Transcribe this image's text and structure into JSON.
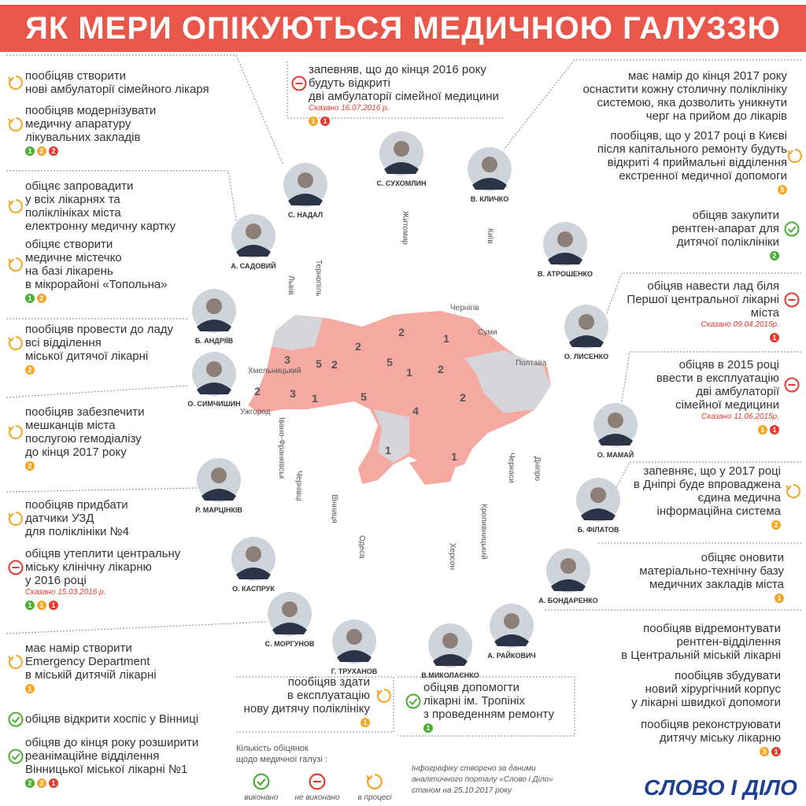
{
  "title": "ЯК МЕРИ ОПІКУЮТЬСЯ МЕДИЧНОЮ ГАЛУЗЗЮ",
  "promises": [
    {
      "status": "progress",
      "lines": [
        "пообіцяв створити",
        "нові амбулаторії сімейного лікаря"
      ]
    },
    {
      "status": "progress",
      "lines": [
        "пообіцяв модернізувати",
        "медичну апаратуру",
        "лікувальних закладів"
      ],
      "badges": [
        {
          "status": "done",
          "count": 1
        },
        {
          "status": "progress",
          "count": 2
        },
        {
          "status": "fail",
          "count": 2
        }
      ]
    },
    {
      "status": "progress",
      "lines": [
        "обіцяє запровадити",
        "у всіх лікарнях та",
        "поліклініках міста",
        "електронну медичну картку"
      ]
    },
    {
      "status": "progress",
      "lines": [
        "обіцяє створити",
        "медичне містечко",
        "на базі лікарень",
        "в мікрорайоні «Топольна»"
      ],
      "badges": [
        {
          "status": "done",
          "count": 1
        },
        {
          "status": "progress",
          "count": 2
        }
      ]
    },
    {
      "status": "progress",
      "lines": [
        "пообіцяв провести до ладу",
        "всі відділення",
        "міської дитячої лікарні"
      ],
      "badges": [
        {
          "status": "progress",
          "count": 2
        }
      ]
    },
    {
      "status": "progress",
      "lines": [
        "пообіцяв забезпечити",
        "мешканців міста",
        "послугою гемодіалізу",
        "до кінця 2017 року"
      ],
      "badges": [
        {
          "status": "progress",
          "count": 2
        }
      ]
    },
    {
      "status": "progress",
      "lines": [
        "пообіцяв придбати",
        "датчики УЗД",
        "для поліклініки №4"
      ]
    },
    {
      "status": "fail",
      "lines": [
        "обіцяв утеплити центральну",
        "міську клінічну лікарню",
        "у 2016 році"
      ],
      "date": "Сказано 15.03.2016 р.",
      "badges": [
        {
          "status": "done",
          "count": 1
        },
        {
          "status": "progress",
          "count": 1
        },
        {
          "status": "fail",
          "count": 1
        }
      ]
    },
    {
      "status": "progress",
      "lines": [
        "має намір створити",
        "Emergency Department",
        "в міській дитячій лікарні"
      ],
      "badges": [
        {
          "status": "progress",
          "count": 1
        }
      ]
    },
    {
      "status": "done",
      "lines": [
        "обіцяв відкрити хоспіс у Вінниці"
      ]
    },
    {
      "status": "done",
      "lines": [
        "обіцяв до кінця року розширити",
        "реанімаційне відділення",
        "Вінницької міської лікарні №1"
      ],
      "badges": [
        {
          "status": "done",
          "count": 2
        },
        {
          "status": "progress",
          "count": 2
        },
        {
          "status": "fail",
          "count": 1
        }
      ]
    },
    {
      "status": "fail",
      "lines": [
        "запевняв, що до кінця 2016 року",
        "будуть відкриті",
        "дві амбулаторії сімейної медицини"
      ],
      "date": "Сказано 16.07.2016 р.",
      "badges": [
        {
          "status": "progress",
          "count": 1
        },
        {
          "status": "fail",
          "count": 1
        }
      ]
    },
    {
      "lines": [
        "має намір до кінця 2017 року",
        "оснастити кожну столичну поліклініку",
        "системою, яка дозволить уникнути",
        "черг на прийом до лікарів"
      ]
    },
    {
      "status": "progress",
      "lines": [
        "пообіцяв, що у 2017 році в Києві",
        "після капітального ремонту будуть",
        "відкриті 4 приймальні відділення",
        "екстренної медичної допомоги"
      ],
      "badges": [
        {
          "status": "progress",
          "count": 5
        }
      ]
    },
    {
      "status": "done",
      "lines": [
        "обіцяв закупити",
        "рентген-апарат для",
        "дитячої поліклініки"
      ],
      "badges": [
        {
          "status": "done",
          "count": 2
        }
      ]
    },
    {
      "status": "fail",
      "lines": [
        "обіцяв навести лад біля",
        "Першої центральної лікарні",
        "міста"
      ],
      "date": "Сказано 09.04.2015р.",
      "badges": [
        {
          "status": "fail",
          "count": 1
        }
      ]
    },
    {
      "status": "fail",
      "lines": [
        "обіцяв в 2015 році",
        "ввести в експлуатацію",
        "дві амбулаторії",
        "сімейної медицини"
      ],
      "date": "Сказано 11.06.2015р.",
      "badges": [
        {
          "status": "progress",
          "count": 1
        },
        {
          "status": "fail",
          "count": 1
        }
      ]
    },
    {
      "status": "progress",
      "lines": [
        "запевняє, що у 2017 році",
        "в Дніпрі буде впроваджена",
        "єдина медична",
        "інформаційна система"
      ],
      "badges": [
        {
          "status": "progress",
          "count": 2
        }
      ]
    },
    {
      "status": "progress",
      "lines": [
        "обіцяє оновити",
        "матеріально-технічну базу",
        "медичних закладів міста"
      ],
      "badges": [
        {
          "status": "progress",
          "count": 1
        }
      ]
    },
    {
      "lines": [
        "пообіцяв відремонтувати",
        "рентген-відділення",
        "в Центральній міській лікарні"
      ]
    },
    {
      "lines": [
        "пообіцяв збудувати",
        "новий хірургічний корпус",
        "у лікарні швидкої допомоги"
      ]
    },
    {
      "lines": [
        "пообіцяв реконструювати",
        "дитячу міську лікарню"
      ],
      "badges": [
        {
          "status": "progress",
          "count": 3
        },
        {
          "status": "fail",
          "count": 1
        }
      ]
    },
    {
      "status": "progress",
      "lines": [
        "пообіцяв здати",
        "в експлуатацію",
        "нову дитячу поліклініку"
      ],
      "badges": [
        {
          "status": "progress",
          "count": 1
        }
      ]
    },
    {
      "status": "done",
      "lines": [
        "обіцяв допомогти",
        "лікарні ім. Тропініх",
        "з проведенням ремонту"
      ],
      "badges": [
        {
          "status": "done",
          "count": 1
        }
      ]
    }
  ],
  "mayors": [
    "С. НАДАЛ",
    "С. СУХОМЛИН",
    "В. КЛИЧКО",
    "А. САДОВИЙ",
    "В. АТРОШЕНКО",
    "Б. АНДРІЇВ",
    "О. ЛИСЕНКО",
    "О. СИМЧИШИН",
    "О. МАМАЙ",
    "Р. МАРЦІНКІВ",
    "Б. ФІЛАТОВ",
    "О. КАСПРУК",
    "А. БОНДАРЕНКО",
    "С. МОРГУНОВ",
    "А. РАЙКОВИЧ",
    "Г. ТРУХАНОВ",
    "В.МИКОЛАЄНКО"
  ],
  "cities": [
    "Житомир",
    "Київ",
    "Львів",
    "Тернопіль",
    "Чернігів",
    "Суми",
    "Полтава",
    "Хмельницький",
    "Ужгород",
    "Івано-Франківськ",
    "Чернівці",
    "Вінниця",
    "Одеса",
    "Херсон",
    "Кропивницький",
    "Черкаси",
    "Дніпро"
  ],
  "map_counts": [
    3,
    5,
    2,
    2,
    2,
    5,
    2,
    1,
    1,
    2,
    3,
    1,
    5,
    2,
    4,
    1,
    1
  ],
  "legend": {
    "title": [
      "Кількість обіцянок",
      "щодо медичної галузі :"
    ],
    "items": [
      {
        "status": "done",
        "label": "виконано"
      },
      {
        "status": "fail",
        "label": "не виконано"
      },
      {
        "status": "progress",
        "label": "в процесі"
      }
    ]
  },
  "source": [
    "Інфографіку створено за даними",
    "аналітичного порталу «Слово і Діло»",
    "станом на 25.10.2017 року"
  ],
  "logo": "СЛОВО І ДІЛО"
}
